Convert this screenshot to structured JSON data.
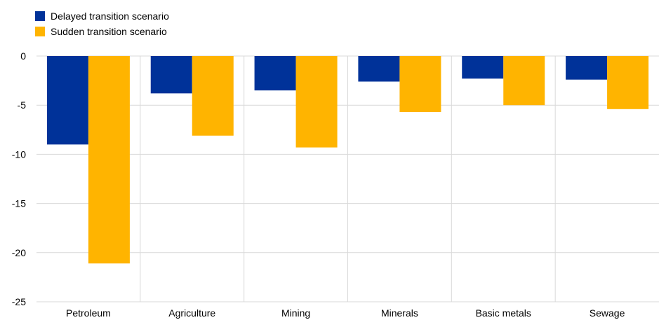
{
  "chart_data": {
    "type": "bar",
    "title": "",
    "xlabel": "",
    "ylabel": "",
    "categories": [
      "Petroleum",
      "Agriculture",
      "Mining",
      "Minerals",
      "Basic metals",
      "Sewage"
    ],
    "series": [
      {
        "name": "Delayed transition scenario",
        "color": "#003299",
        "values": [
          -9.0,
          -3.8,
          -3.5,
          -2.6,
          -2.3,
          -2.4
        ]
      },
      {
        "name": "Sudden transition scenario",
        "color": "#FFB400",
        "values": [
          -21.1,
          -8.1,
          -9.3,
          -5.7,
          -5.0,
          -5.4
        ]
      }
    ],
    "ylim": [
      -25,
      0
    ],
    "yticks": [
      0,
      -5,
      -10,
      -15,
      -20,
      -25
    ],
    "ytick_labels": [
      "0",
      "-5",
      "-10",
      "-15",
      "-20",
      "-25"
    ],
    "grid": true,
    "legend_position": "top-left"
  }
}
